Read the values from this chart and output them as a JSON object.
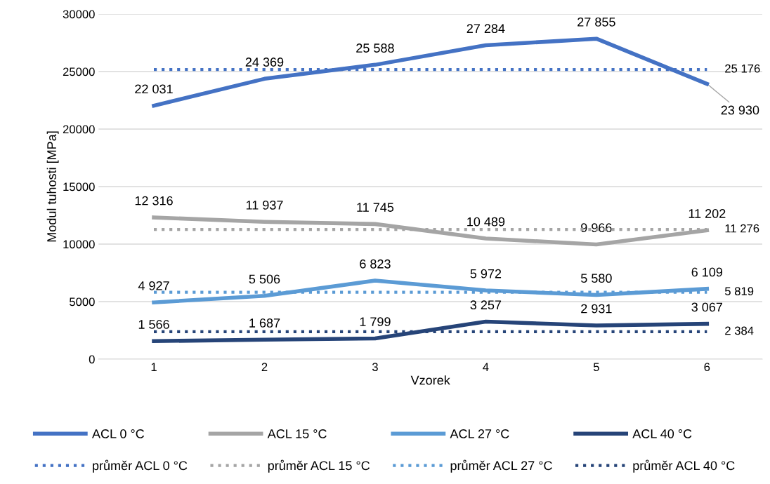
{
  "chart_data": {
    "type": "line",
    "xlabel": "Vzorek",
    "ylabel": "Modul tuhosti [MPa]",
    "categories": [
      "1",
      "2",
      "3",
      "4",
      "5",
      "6"
    ],
    "ylim": [
      0,
      30000
    ],
    "yticks": [
      0,
      5000,
      10000,
      15000,
      20000,
      25000,
      30000
    ],
    "grid": "y",
    "legend": "bottom",
    "series": [
      {
        "name": "ACL 0 °C",
        "color": "#4472c4",
        "line_style": "solid",
        "values": [
          22031,
          24369,
          25588,
          27284,
          27855,
          23930
        ],
        "value_labels": [
          "22 031",
          "24 369",
          "25 588",
          "27 284",
          "27 855",
          "23 930"
        ]
      },
      {
        "name": "ACL 15 °C",
        "color": "#a5a5a5",
        "line_style": "solid",
        "values": [
          12316,
          11937,
          11745,
          10489,
          9966,
          11202
        ],
        "value_labels": [
          "12 316",
          "11 937",
          "11 745",
          "10 489",
          "9 966",
          "11 202"
        ]
      },
      {
        "name": "ACL 27 °C",
        "color": "#5b9bd5",
        "line_style": "solid",
        "values": [
          4927,
          5506,
          6823,
          5972,
          5580,
          6109
        ],
        "value_labels": [
          "4 927",
          "5 506",
          "6 823",
          "5 972",
          "5 580",
          "6 109"
        ]
      },
      {
        "name": "ACL 40 °C",
        "color": "#264478",
        "line_style": "solid",
        "values": [
          1566,
          1687,
          1799,
          3257,
          2931,
          3067
        ],
        "value_labels": [
          "1 566",
          "1 687",
          "1 799",
          "3 257",
          "2 931",
          "3 067"
        ]
      },
      {
        "name": "průměr ACL 0 °C",
        "color": "#4472c4",
        "line_style": "dotted",
        "values": [
          25176,
          25176,
          25176,
          25176,
          25176,
          25176
        ],
        "value_labels": [
          null,
          null,
          null,
          null,
          null,
          "25 176"
        ]
      },
      {
        "name": "průměr ACL 15 °C",
        "color": "#a5a5a5",
        "line_style": "dotted",
        "values": [
          11276,
          11276,
          11276,
          11276,
          11276,
          11276
        ],
        "value_labels": [
          null,
          null,
          null,
          null,
          null,
          "11 276"
        ]
      },
      {
        "name": "průměr ACL 27 °C",
        "color": "#5b9bd5",
        "line_style": "dotted",
        "values": [
          5819,
          5819,
          5819,
          5819,
          5819,
          5819
        ],
        "value_labels": [
          null,
          null,
          null,
          null,
          null,
          "5 819"
        ]
      },
      {
        "name": "průměr ACL 40 °C",
        "color": "#264478",
        "line_style": "dotted",
        "values": [
          2384,
          2384,
          2384,
          2384,
          2384,
          2384
        ],
        "value_labels": [
          null,
          null,
          null,
          null,
          null,
          "2 384"
        ]
      }
    ]
  }
}
